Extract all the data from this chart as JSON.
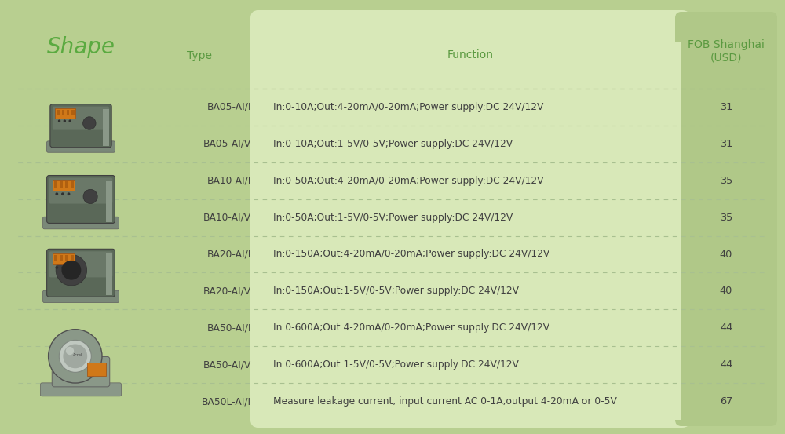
{
  "outer_bg": "#b8cf90",
  "left_panel_bg": "#b8cf90",
  "right_panel_bg": "#b0c888",
  "center_panel_bg": "#d8e8b8",
  "row_bg": "#d0e0b0",
  "divider_color": "#a8c090",
  "header_color": "#5a9940",
  "text_color": "#404040",
  "shape_text_color": "#5aaa40",
  "header_fontsize": 10,
  "shape_header_fontsize": 20,
  "data_fontsize": 8.8,
  "header_col1": "Shape",
  "header_col2": "Type",
  "header_col3": "Function",
  "header_col4": "FOB Shanghai\n(USD)",
  "rows": [
    {
      "type": "BA05-AI/I",
      "function": "In:0-10A;Out:4-20mA/0-20mA;Power supply:DC 24V/12V",
      "price": "31",
      "group": 0
    },
    {
      "type": "BA05-AI/V",
      "function": "In:0-10A;Out:1-5V/0-5V;Power supply:DC 24V/12V",
      "price": "31",
      "group": 0
    },
    {
      "type": "BA10-AI/I",
      "function": "In:0-50A;Out:4-20mA/0-20mA;Power supply:DC 24V/12V",
      "price": "35",
      "group": 1
    },
    {
      "type": "BA10-AI/V",
      "function": "In:0-50A;Out:1-5V/0-5V;Power supply:DC 24V/12V",
      "price": "35",
      "group": 1
    },
    {
      "type": "BA20-AI/I",
      "function": "In:0-150A;Out:4-20mA/0-20mA;Power supply:DC 24V/12V",
      "price": "40",
      "group": 2
    },
    {
      "type": "BA20-AI/V",
      "function": "In:0-150A;Out:1-5V/0-5V;Power supply:DC 24V/12V",
      "price": "40",
      "group": 2
    },
    {
      "type": "BA50-AI/I",
      "function": "In:0-600A;Out:4-20mA/0-20mA;Power supply:DC 24V/12V",
      "price": "44",
      "group": 3
    },
    {
      "type": "BA50-AI/V",
      "function": "In:0-600A;Out:1-5V/0-5V;Power supply:DC 24V/12V",
      "price": "44",
      "group": 3
    },
    {
      "type": "BA50L-AI/I",
      "function": "Measure leakage current, input current AC 0-1A,output 4-20mA or 0-5V",
      "price": "67",
      "group": 3
    }
  ],
  "fig_width": 10.0,
  "fig_height": 5.53
}
